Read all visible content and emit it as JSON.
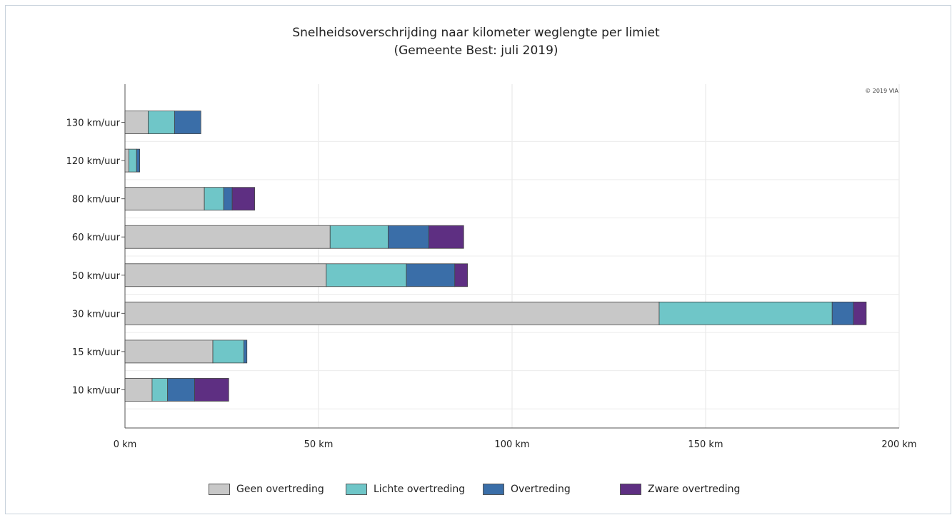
{
  "chart_data": {
    "type": "bar",
    "orientation": "horizontal",
    "stacked": true,
    "title": "Snelheidsoverschrijding naar kilometer weglengte per limiet",
    "subtitle": "(Gemeente Best: juli 2019)",
    "credit": "© 2019 VIA",
    "categories": [
      "130 km/uur",
      "120 km/uur",
      "80 km/uur",
      "60 km/uur",
      "50 km/uur",
      "30 km/uur",
      "15 km/uur",
      "10 km/uur"
    ],
    "series": [
      {
        "name": "Geen overtreding",
        "color": "#c8c8c8",
        "values": [
          6,
          1,
          20.5,
          53,
          52,
          138,
          22.7,
          7
        ]
      },
      {
        "name": "Lichte overtreding",
        "color": "#6fc6c8",
        "values": [
          6.8,
          2,
          5,
          15,
          20.7,
          44.7,
          8,
          4
        ]
      },
      {
        "name": "Overtreding",
        "color": "#3a6ea8",
        "values": [
          6.8,
          0.8,
          2.2,
          10.5,
          12.5,
          5.5,
          0.8,
          7
        ]
      },
      {
        "name": "Zware overtreding",
        "color": "#5e2f82",
        "values": [
          0,
          0,
          5.8,
          9,
          3.3,
          3.3,
          0,
          8.8
        ]
      }
    ],
    "x_ticks": [
      0,
      50,
      100,
      150,
      200
    ],
    "x_tick_labels": [
      "0 km",
      "50 km",
      "100 km",
      "150 km",
      "200 km"
    ],
    "xlim": [
      0,
      200
    ],
    "grid": true,
    "legend_position": "bottom"
  }
}
